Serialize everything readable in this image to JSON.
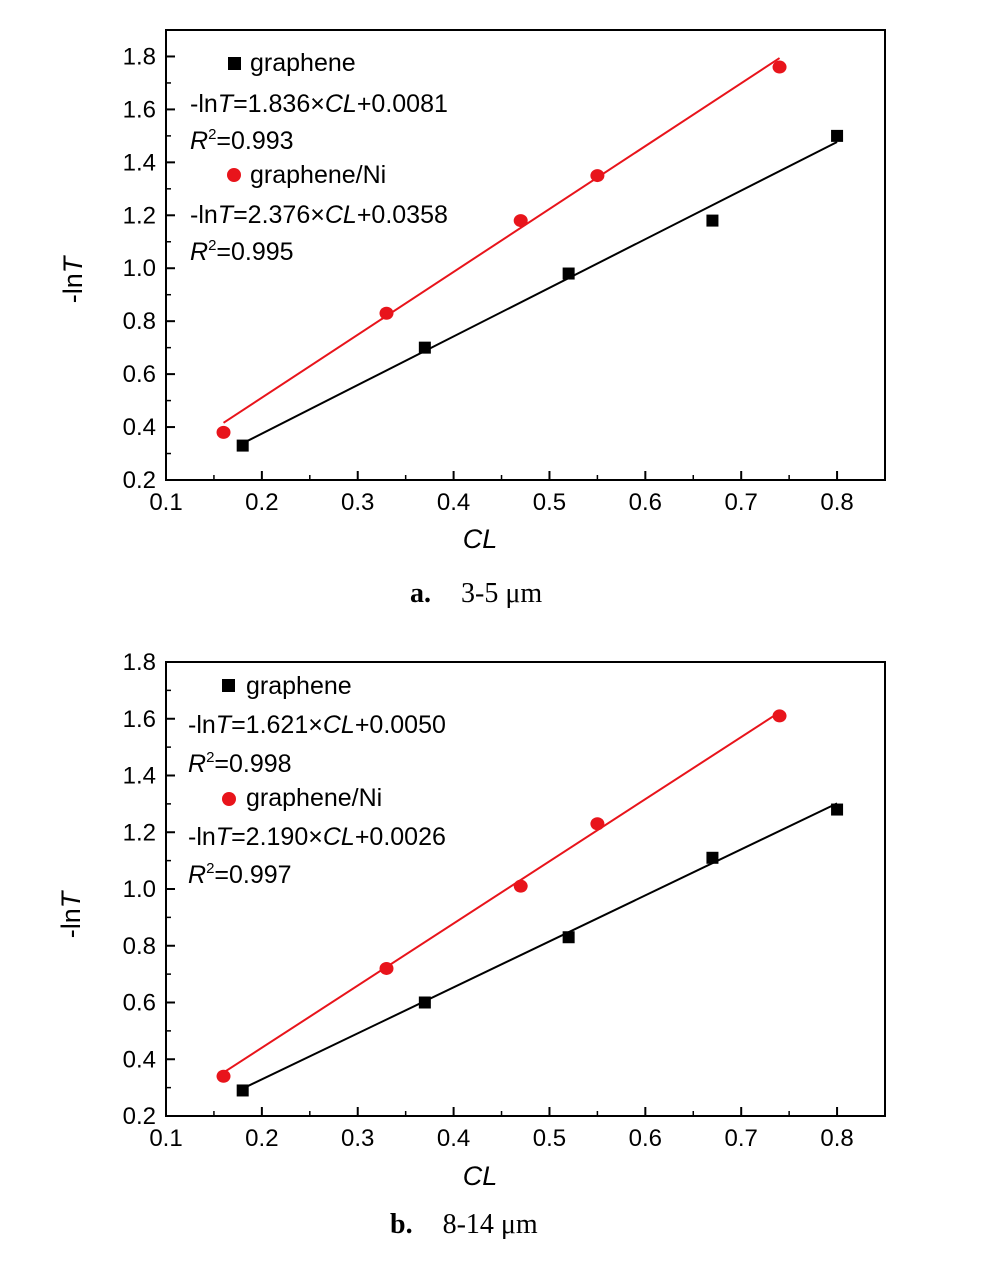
{
  "chart_data": [
    {
      "type": "scatter",
      "title": "",
      "caption_letter": "a.",
      "caption_text": "3-5 μm",
      "xlabel": "CL",
      "ylabel": "-lnT",
      "xlim": [
        0.1,
        0.85
      ],
      "ylim": [
        0.2,
        1.9
      ],
      "xticks": [
        0.1,
        0.2,
        0.3,
        0.4,
        0.5,
        0.6,
        0.7,
        0.8
      ],
      "yticks": [
        0.2,
        0.4,
        0.6,
        0.8,
        1.0,
        1.2,
        1.4,
        1.6,
        1.8
      ],
      "legend_position": "top-left",
      "series": [
        {
          "name": "graphene",
          "marker": "square",
          "color": "#000000",
          "x": [
            0.18,
            0.37,
            0.52,
            0.67,
            0.8
          ],
          "y": [
            0.33,
            0.7,
            0.98,
            1.18,
            1.5
          ],
          "fit_equation": "-lnT=1.836×CL+0.0081",
          "r2": "R2=0.993",
          "fit": {
            "slope": 1.836,
            "intercept": 0.0081,
            "x_range": [
              0.18,
              0.8
            ]
          }
        },
        {
          "name": "graphene/Ni",
          "marker": "circle",
          "color": "#e8141b",
          "x": [
            0.16,
            0.33,
            0.47,
            0.55,
            0.74
          ],
          "y": [
            0.38,
            0.83,
            1.18,
            1.35,
            1.76
          ],
          "fit_equation": "-lnT=2.376×CL+0.0358",
          "r2": "R2=0.995",
          "fit": {
            "slope": 2.376,
            "intercept": 0.0358,
            "x_range": [
              0.16,
              0.74
            ]
          }
        }
      ]
    },
    {
      "type": "scatter",
      "title": "",
      "caption_letter": "b.",
      "caption_text": "8-14 μm",
      "xlabel": "CL",
      "ylabel": "-lnT",
      "xlim": [
        0.1,
        0.85
      ],
      "ylim": [
        0.2,
        1.8
      ],
      "xticks": [
        0.1,
        0.2,
        0.3,
        0.4,
        0.5,
        0.6,
        0.7,
        0.8
      ],
      "yticks": [
        0.2,
        0.4,
        0.6,
        0.8,
        1.0,
        1.2,
        1.4,
        1.6,
        1.8
      ],
      "legend_position": "top-left",
      "series": [
        {
          "name": "graphene",
          "marker": "square",
          "color": "#000000",
          "x": [
            0.18,
            0.37,
            0.52,
            0.67,
            0.8
          ],
          "y": [
            0.29,
            0.6,
            0.83,
            1.11,
            1.28
          ],
          "fit_equation": "-lnT=1.621×CL+0.0050",
          "r2": "R2=0.998",
          "fit": {
            "slope": 1.621,
            "intercept": 0.005,
            "x_range": [
              0.18,
              0.8
            ]
          }
        },
        {
          "name": "graphene/Ni",
          "marker": "circle",
          "color": "#e8141b",
          "x": [
            0.16,
            0.33,
            0.47,
            0.55,
            0.74
          ],
          "y": [
            0.34,
            0.72,
            1.01,
            1.23,
            1.61
          ],
          "fit_equation": "-lnT=2.190×CL+0.0026",
          "r2": "R2=0.997",
          "fit": {
            "slope": 2.19,
            "intercept": 0.0026,
            "x_range": [
              0.16,
              0.74
            ]
          }
        }
      ]
    }
  ]
}
